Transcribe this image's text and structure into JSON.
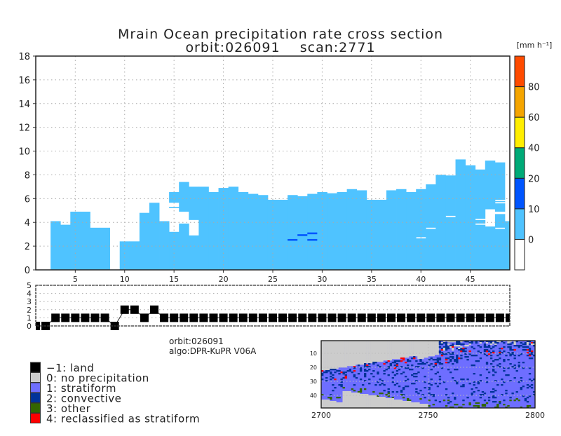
{
  "title_line1": "Mrain Ocean precipitation rate cross section",
  "title_line2": "orbit:026091    scan:2771",
  "info": {
    "orbit": "orbit:026091",
    "algo": "algo:DPR-KuPR V06A"
  },
  "chart_data": [
    {
      "type": "heatmap",
      "title": "Mrain Ocean precipitation rate cross section",
      "xlim": [
        1,
        49
      ],
      "ylim": [
        0,
        18
      ],
      "xticks": [
        5,
        10,
        15,
        20,
        25,
        30,
        35,
        40,
        45
      ],
      "yticks": [
        0,
        2,
        4,
        6,
        8,
        10,
        12,
        14,
        16,
        18
      ],
      "grid": true,
      "rain_class_0_10_segments": [
        [],
        [],
        [
          [
            0,
            4.1
          ]
        ],
        [
          [
            0,
            3.8
          ]
        ],
        [
          [
            0,
            4.9
          ]
        ],
        [
          [
            0,
            4.9
          ]
        ],
        [
          [
            0,
            3.55
          ]
        ],
        [
          [
            0,
            3.55
          ]
        ],
        [],
        [
          [
            0,
            2.4
          ]
        ],
        [
          [
            0,
            2.4
          ]
        ],
        [
          [
            0,
            4.8
          ]
        ],
        [
          [
            0,
            5.65
          ]
        ],
        [
          [
            0,
            4.1
          ]
        ],
        [
          [
            0,
            3.2
          ],
          [
            5.2,
            5.3
          ],
          [
            5.65,
            6.55
          ]
        ],
        [
          [
            0,
            3.9
          ],
          [
            4.9,
            7.4
          ]
        ],
        [
          [
            0,
            2.9
          ],
          [
            4.2,
            7.0
          ]
        ],
        [
          [
            0,
            7.0
          ]
        ],
        [
          [
            0,
            6.55
          ]
        ],
        [
          [
            0,
            6.9
          ]
        ],
        [
          [
            0,
            7.0
          ]
        ],
        [
          [
            0,
            6.55
          ]
        ],
        [
          [
            0,
            6.4
          ]
        ],
        [
          [
            0,
            6.3
          ]
        ],
        [
          [
            0,
            5.9
          ]
        ],
        [
          [
            0,
            5.9
          ]
        ],
        [
          [
            0,
            6.3
          ]
        ],
        [
          [
            0,
            6.2
          ]
        ],
        [
          [
            0,
            6.4
          ]
        ],
        [
          [
            0,
            6.55
          ]
        ],
        [
          [
            0,
            6.45
          ]
        ],
        [
          [
            0,
            6.55
          ]
        ],
        [
          [
            0,
            6.8
          ]
        ],
        [
          [
            0,
            6.7
          ]
        ],
        [
          [
            0,
            5.9
          ]
        ],
        [
          [
            0,
            5.9
          ]
        ],
        [
          [
            0,
            6.7
          ]
        ],
        [
          [
            0,
            6.8
          ]
        ],
        [
          [
            0,
            6.55
          ]
        ],
        [
          [
            0,
            2.65
          ],
          [
            2.75,
            6.8
          ]
        ],
        [
          [
            0,
            3.45
          ],
          [
            3.55,
            7.2
          ]
        ],
        [
          [
            0,
            8.0
          ]
        ],
        [
          [
            0,
            4.45
          ],
          [
            4.55,
            7.95
          ]
        ],
        [
          [
            0,
            9.3
          ]
        ],
        [
          [
            0,
            8.8
          ]
        ],
        [
          [
            0,
            3.8
          ],
          [
            3.9,
            4.2
          ],
          [
            4.3,
            8.45
          ]
        ],
        [
          [
            0,
            3.65
          ],
          [
            5.1,
            9.2
          ]
        ],
        [
          [
            0,
            3.45
          ],
          [
            3.55,
            4.7
          ],
          [
            4.9,
            5.6
          ],
          [
            5.7,
            5.8
          ],
          [
            5.9,
            9.05
          ]
        ],
        [
          [
            0,
            4.1
          ]
        ]
      ],
      "rain_class_10_20_segments": [
        [
          27,
          2.45,
          2.6
        ],
        [
          28,
          2.85,
          3.0
        ],
        [
          29,
          3.0,
          3.15
        ],
        [
          29,
          2.45,
          2.6
        ]
      ],
      "colorbar": {
        "unit": "[mm h⁻¹]",
        "labels": [
          "0",
          "10",
          "20",
          "40",
          "60",
          "80"
        ],
        "colors": [
          "#ffffff",
          "#4fc3ff",
          "#0055ff",
          "#00aa77",
          "#ffee00",
          "#f5a500",
          "#ff4b00"
        ]
      }
    },
    {
      "type": "scatter",
      "xlim": [
        1,
        49
      ],
      "ylim": [
        0,
        5
      ],
      "yticks": [
        0,
        1,
        2,
        3,
        4,
        5
      ],
      "grid": true,
      "x": [
        1,
        2,
        3,
        4,
        5,
        6,
        7,
        8,
        9,
        10,
        11,
        12,
        13,
        14,
        15,
        16,
        17,
        18,
        19,
        20,
        21,
        22,
        23,
        24,
        25,
        26,
        27,
        28,
        29,
        30,
        31,
        32,
        33,
        34,
        35,
        36,
        37,
        38,
        39,
        40,
        41,
        42,
        43,
        44,
        45,
        46,
        47,
        48,
        49
      ],
      "values": [
        0,
        0,
        1,
        1,
        1,
        1,
        1,
        1,
        0,
        2,
        2,
        1,
        2,
        1,
        1,
        1,
        1,
        1,
        1,
        1,
        1,
        1,
        1,
        1,
        1,
        1,
        1,
        1,
        1,
        1,
        1,
        1,
        1,
        1,
        1,
        1,
        1,
        1,
        1,
        1,
        1,
        1,
        1,
        1,
        1,
        1,
        1,
        1,
        1
      ]
    },
    {
      "type": "heatmap",
      "xlim": [
        2700,
        2800
      ],
      "ylim": [
        1,
        49
      ],
      "xticks": [
        "2700",
        "2750",
        "2800"
      ],
      "yticks": [
        "10",
        "20",
        "30",
        "40"
      ],
      "grid": true,
      "legend": [
        {
          "label": "−1: land",
          "color": "#000000"
        },
        {
          "label": "0: no precipitation",
          "color": "#cccccc"
        },
        {
          "label": "1: stratiform",
          "color": "#6e6eff"
        },
        {
          "label": "2: convective",
          "color": "#003399"
        },
        {
          "label": "3: other",
          "color": "#336600"
        },
        {
          "label": "4: reclassified as stratiform",
          "color": "#ff0000"
        }
      ]
    }
  ]
}
